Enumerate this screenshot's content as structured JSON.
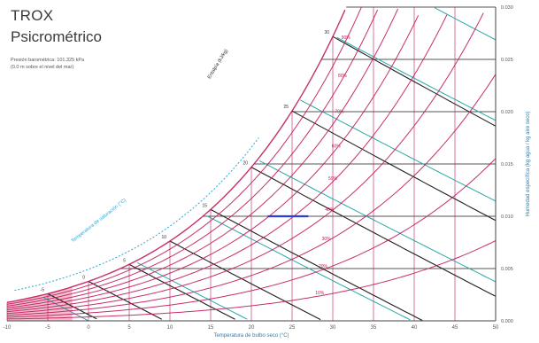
{
  "header": {
    "title": "TROX",
    "subtitle": "Psicrométrico",
    "pressure_line_1": "Presión barométrica: 101.325 kPa",
    "pressure_line_2": "(0.0 m sobre el nivel del mar)"
  },
  "chart_data": {
    "type": "psychrometric",
    "xlabel": "Temperatura de bulbo seco (°C)",
    "ylabel": "Humedad específica (kg agua / kg aire seco)",
    "x_ticks": [
      -10,
      -5,
      0,
      5,
      10,
      15,
      20,
      25,
      30,
      35,
      40,
      45,
      50
    ],
    "xlim": [
      -10,
      50
    ],
    "y_ticks": [
      0.0,
      0.005,
      0.01,
      0.015,
      0.02,
      0.025,
      0.03
    ],
    "y_tick_labels": [
      "0.000",
      "0.005",
      "0.010",
      "0.015",
      "0.020",
      "0.025",
      "0.030"
    ],
    "ylim": [
      0,
      0.03
    ],
    "relative_humidity_curves": [
      10,
      20,
      30,
      40,
      50,
      60,
      70,
      80,
      90,
      100
    ],
    "wet_bulb_lines": [
      -5,
      0,
      5,
      10,
      15,
      20,
      25,
      30
    ],
    "enthalpy_lines": [
      0,
      20,
      40,
      60,
      80,
      100,
      120
    ],
    "specific_volume_lines": [
      0.8,
      0.85,
      0.9,
      0.95
    ],
    "saturation_label": "Temperatura de saturación (°C)",
    "enthalpy_label": "Entalpía (kJ/kg)",
    "highlight_segment": {
      "x_start": 22,
      "x_end": 27,
      "y": 0.01,
      "color": "#2b3fd6"
    },
    "colors": {
      "rh_curves": "#c2185b",
      "wet_bulb": "#1f1f1f",
      "enthalpy": "#2aa8a8",
      "grid": "#555555",
      "fill_low_temp": "#e98aa6",
      "saturation_axis": "#2aa8d8"
    }
  }
}
